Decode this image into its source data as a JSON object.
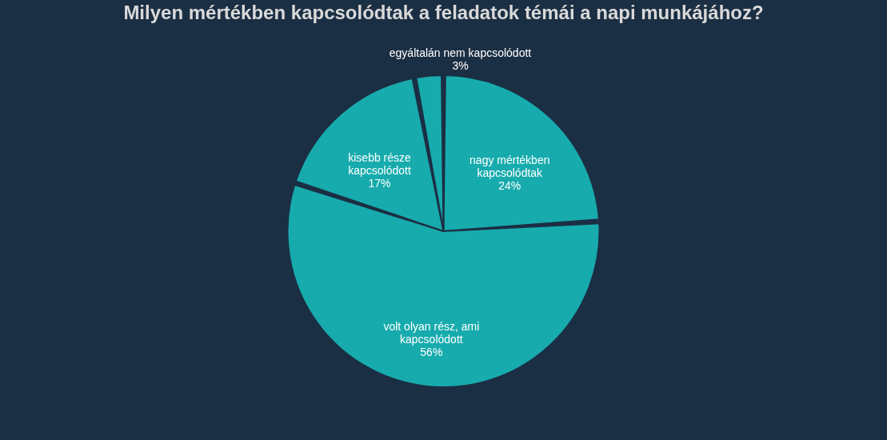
{
  "chart_data": {
    "type": "pie",
    "title": "Milyen mértékben kapcsolódtak a feladatok témái a napi munkájához?",
    "categories": [
      "nagy mértékben\nkapcsolódtak",
      "volt olyan rész, ami\nkapcsolódott",
      "kisebb része\nkapcsolódott",
      "egyáltalán nem kapcsolódott"
    ],
    "values": [
      24,
      56,
      17,
      3
    ],
    "value_labels": [
      "24%",
      "56%",
      "17%",
      "3%"
    ],
    "colors": [
      "#17abad",
      "#17abad",
      "#17abad",
      "#17abad"
    ],
    "legend": false
  }
}
